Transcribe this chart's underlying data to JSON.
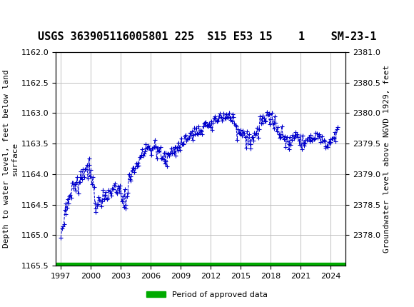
{
  "title": "USGS 363905116005801 225  S15 E53 15    1    SM-23-1",
  "ylabel_left": "Depth to water level, feet below land\nsurface",
  "ylabel_right": "Groundwater level above NGVD 1929, feet",
  "ylim_left": [
    1165.5,
    1162.0
  ],
  "ylim_right": [
    2378.0,
    2381.0
  ],
  "xlim": [
    1996.5,
    2025.5
  ],
  "xticks": [
    1997,
    2000,
    2003,
    2006,
    2009,
    2012,
    2015,
    2018,
    2021,
    2024
  ],
  "yticks_left": [
    1162.0,
    1162.5,
    1163.0,
    1163.5,
    1164.0,
    1164.5,
    1165.0,
    1165.5
  ],
  "yticks_right": [
    2378.0,
    2378.5,
    2379.0,
    2379.5,
    2380.0,
    2380.5,
    2381.0
  ],
  "line_color": "#0000cc",
  "line_style": "--",
  "marker": "+",
  "marker_size": 4,
  "marker_color": "#0000cc",
  "grid_color": "#c0c0c0",
  "background_color": "#ffffff",
  "header_color": "#1a6b3c",
  "legend_label": "Period of approved data",
  "legend_color": "#00aa00",
  "title_fontsize": 11,
  "axis_fontsize": 8,
  "tick_fontsize": 8
}
